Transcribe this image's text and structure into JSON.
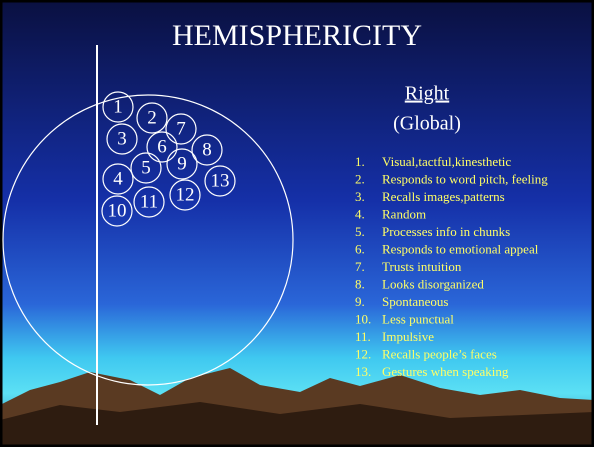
{
  "title": "HEMISPHERICITY",
  "heading": "Right",
  "subheading": "(Global)",
  "circles": [
    "1",
    "2",
    "3",
    "6",
    "7",
    "8",
    "4",
    "5",
    "9",
    "13",
    "10",
    "11",
    "12"
  ],
  "items": [
    {
      "number": "1.",
      "text": "Visual,tactful,kinesthetic"
    },
    {
      "number": "2.",
      "text": "Responds to word pitch, feeling"
    },
    {
      "number": "3.",
      "text": "Recalls images,patterns"
    },
    {
      "number": "4.",
      "text": "Random"
    },
    {
      "number": "5.",
      "text": "Processes info in chunks"
    },
    {
      "number": "6.",
      "text": "Responds to emotional appeal"
    },
    {
      "number": "7.",
      "text": "Trusts intuition"
    },
    {
      "number": "8.",
      "text": "Looks disorganized"
    },
    {
      "number": "9.",
      "text": "Spontaneous"
    },
    {
      "number": "10.",
      "text": "Less punctual"
    },
    {
      "number": "11.",
      "text": "Impulsive"
    },
    {
      "number": "12.",
      "text": "Recalls people’s faces"
    },
    {
      "number": "13.",
      "text": "Gestures when speaking"
    }
  ]
}
